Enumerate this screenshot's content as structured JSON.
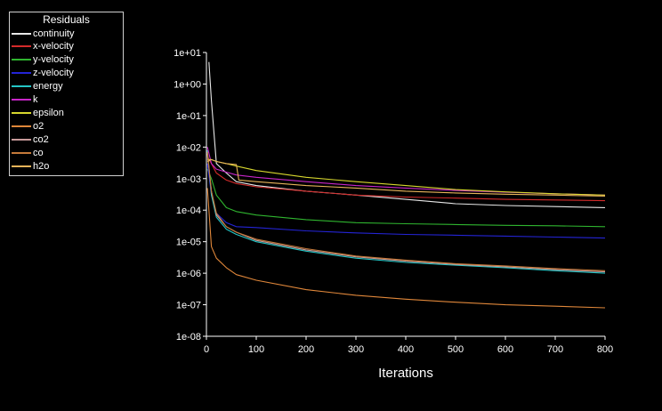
{
  "colors": {
    "background": "#000000",
    "axis": "#ffffff",
    "text": "#ffffff",
    "legend_border": "#cfcfcf"
  },
  "legend": {
    "title": "Residuals",
    "items": [
      {
        "label": "continuity",
        "color": "#e8e8e8"
      },
      {
        "label": "x-velocity",
        "color": "#d42b2b"
      },
      {
        "label": "y-velocity",
        "color": "#2fb52f"
      },
      {
        "label": "z-velocity",
        "color": "#2424d6"
      },
      {
        "label": "energy",
        "color": "#25c6c6"
      },
      {
        "label": "k",
        "color": "#c826c8"
      },
      {
        "label": "epsilon",
        "color": "#d7d72e"
      },
      {
        "label": "o2",
        "color": "#e0873a"
      },
      {
        "label": "co2",
        "color": "#c79a9a"
      },
      {
        "label": "co",
        "color": "#c57a3a"
      },
      {
        "label": "h2o",
        "color": "#e8b45a"
      }
    ]
  },
  "chart_data": {
    "type": "line",
    "xlabel": "Iterations",
    "ylabel": "",
    "xlim": [
      0,
      800
    ],
    "ylim": [
      1e-08,
      10
    ],
    "yscale": "log",
    "grid": false,
    "legend_position": "top-left",
    "x_ticks": [
      "0",
      "100",
      "200",
      "300",
      "400",
      "500",
      "600",
      "700",
      "800"
    ],
    "y_ticks": [
      "1e+01",
      "1e+00",
      "1e-01",
      "1e-02",
      "1e-03",
      "1e-04",
      "1e-05",
      "1e-06",
      "1e-07",
      "1e-08"
    ],
    "series": [
      {
        "name": "continuity",
        "x": [
          5,
          10,
          20,
          40,
          60,
          100,
          200,
          300,
          400,
          500,
          600,
          700,
          800
        ],
        "y": [
          5,
          0.3,
          0.003,
          0.0015,
          0.0008,
          0.0006,
          0.0004,
          0.0003,
          0.00022,
          0.00016,
          0.00014,
          0.00013,
          0.00012
        ]
      },
      {
        "name": "x-velocity",
        "x": [
          2,
          10,
          20,
          40,
          60,
          100,
          200,
          300,
          400,
          500,
          600,
          700,
          800
        ],
        "y": [
          0.005,
          0.003,
          0.0015,
          0.0009,
          0.0007,
          0.00055,
          0.0004,
          0.0003,
          0.00026,
          0.00024,
          0.00022,
          0.00021,
          0.0002
        ]
      },
      {
        "name": "y-velocity",
        "x": [
          2,
          10,
          20,
          40,
          60,
          100,
          200,
          300,
          400,
          500,
          600,
          700,
          800
        ],
        "y": [
          0.002,
          0.001,
          0.0003,
          0.00012,
          9e-05,
          7e-05,
          5e-05,
          4e-05,
          3.7e-05,
          3.5e-05,
          3.3e-05,
          3.2e-05,
          3e-05
        ]
      },
      {
        "name": "z-velocity",
        "x": [
          2,
          10,
          20,
          40,
          60,
          100,
          200,
          300,
          400,
          500,
          600,
          700,
          800
        ],
        "y": [
          0.003,
          0.0003,
          8e-05,
          4e-05,
          3e-05,
          2.8e-05,
          2.2e-05,
          1.9e-05,
          1.7e-05,
          1.6e-05,
          1.5e-05,
          1.4e-05,
          1.3e-05
        ]
      },
      {
        "name": "energy",
        "x": [
          2,
          10,
          20,
          40,
          60,
          100,
          200,
          300,
          400,
          500,
          600,
          700,
          800
        ],
        "y": [
          0.008,
          0.0003,
          6e-05,
          2.5e-05,
          1.7e-05,
          1e-05,
          5e-06,
          3e-06,
          2.2e-06,
          1.8e-06,
          1.5e-06,
          1.2e-06,
          1e-06
        ]
      },
      {
        "name": "k",
        "x": [
          2,
          10,
          20,
          40,
          60,
          100,
          200,
          300,
          400,
          500,
          600,
          700,
          800
        ],
        "y": [
          0.01,
          0.003,
          0.002,
          0.0016,
          0.0013,
          0.0011,
          0.0008,
          0.0006,
          0.0005,
          0.00042,
          0.00037,
          0.00033,
          0.0003
        ]
      },
      {
        "name": "epsilon",
        "x": [
          2,
          10,
          20,
          40,
          60,
          100,
          200,
          300,
          400,
          500,
          600,
          700,
          800
        ],
        "y": [
          0.004,
          0.004,
          0.0035,
          0.003,
          0.0025,
          0.0018,
          0.0011,
          0.0008,
          0.0006,
          0.00045,
          0.00038,
          0.00033,
          0.0003
        ]
      },
      {
        "name": "o2",
        "x": [
          2,
          10,
          20,
          40,
          60,
          100,
          200,
          300,
          400,
          500,
          600,
          700,
          800
        ],
        "y": [
          0.0005,
          7e-06,
          3e-06,
          1.5e-06,
          9e-07,
          6e-07,
          3e-07,
          2e-07,
          1.5e-07,
          1.2e-07,
          1e-07,
          9e-08,
          8e-08
        ]
      },
      {
        "name": "co2",
        "x": [
          2,
          10,
          20,
          40,
          60,
          100,
          200,
          300,
          400,
          500,
          600,
          700,
          800
        ],
        "y": [
          0.006,
          0.0004,
          7e-05,
          3e-05,
          2e-05,
          1.1e-05,
          5.5e-06,
          3.3e-06,
          2.4e-06,
          1.9e-06,
          1.6e-06,
          1.3e-06,
          1.1e-06
        ]
      },
      {
        "name": "co",
        "x": [
          2,
          10,
          20,
          40,
          60,
          100,
          200,
          300,
          400,
          500,
          600,
          700,
          800
        ],
        "y": [
          0.007,
          0.0004,
          8e-05,
          3e-05,
          2e-05,
          1.2e-05,
          6e-06,
          3.5e-06,
          2.6e-06,
          2e-06,
          1.7e-06,
          1.4e-06,
          1.2e-06
        ]
      },
      {
        "name": "h2o",
        "x": [
          2,
          10,
          20,
          40,
          60,
          65,
          100,
          200,
          300,
          400,
          500,
          600,
          700,
          800
        ],
        "y": [
          0.0035,
          0.004,
          0.0035,
          0.003,
          0.0028,
          0.0009,
          0.0008,
          0.0006,
          0.0005,
          0.0004,
          0.00035,
          0.00032,
          0.0003,
          0.00028
        ]
      }
    ]
  }
}
